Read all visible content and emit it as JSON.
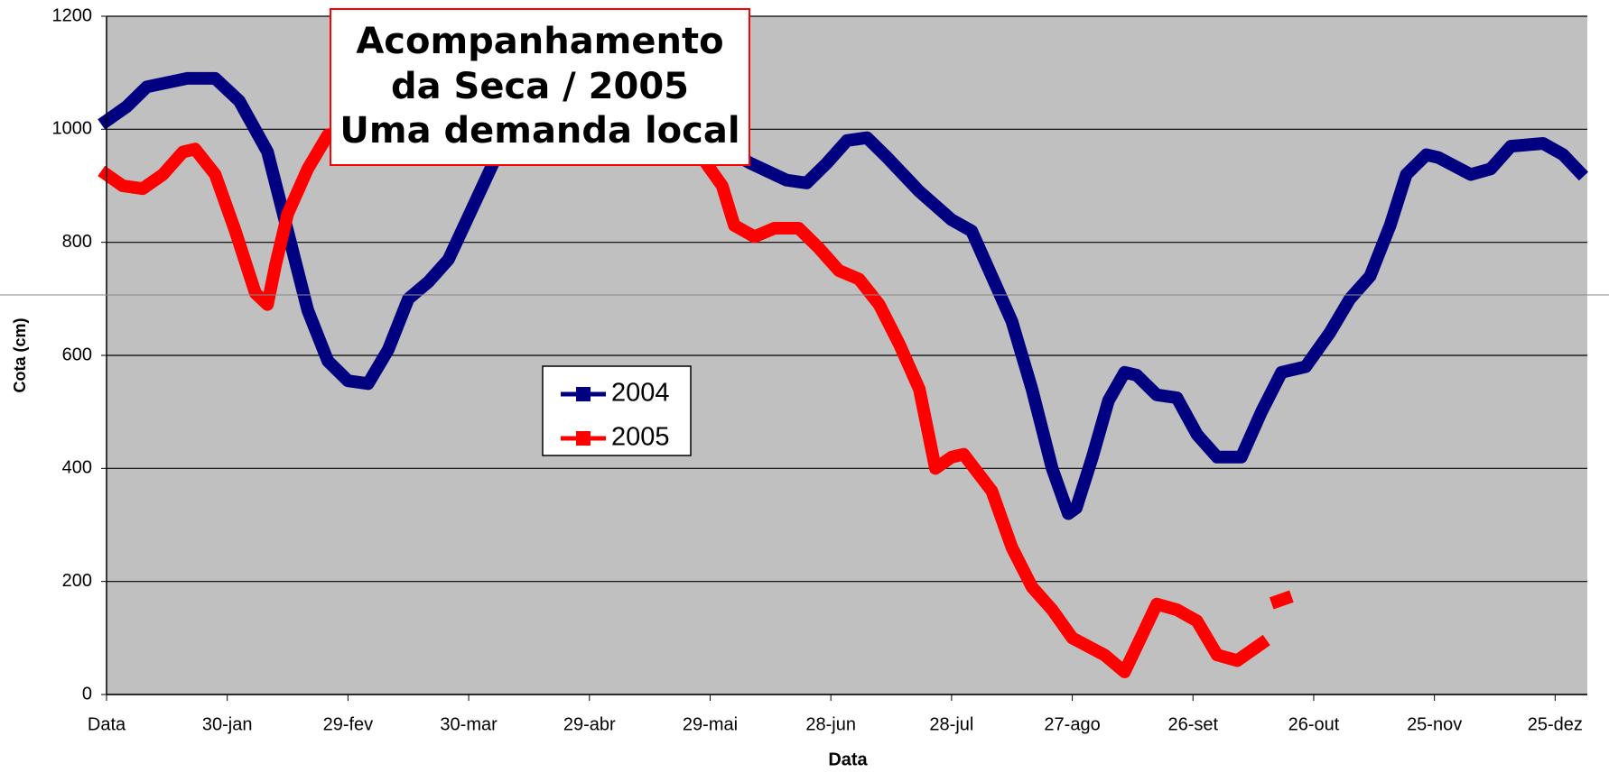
{
  "chart_data": {
    "type": "line",
    "title": [
      "Acompanhamento",
      "da Seca / 2005",
      "Uma demanda local"
    ],
    "x_label": "Data",
    "y_label": "Cota (cm)",
    "xlim": [
      0,
      368
    ],
    "ylim": [
      0,
      1200
    ],
    "xticks": [
      {
        "value": 0,
        "label": "Data"
      },
      {
        "value": 30,
        "label": "30-jan"
      },
      {
        "value": 60,
        "label": "29-fev"
      },
      {
        "value": 90,
        "label": "30-mar"
      },
      {
        "value": 120,
        "label": "29-abr"
      },
      {
        "value": 150,
        "label": "29-mai"
      },
      {
        "value": 180,
        "label": "28-jun"
      },
      {
        "value": 210,
        "label": "28-jul"
      },
      {
        "value": 240,
        "label": "27-ago"
      },
      {
        "value": 270,
        "label": "26-set"
      },
      {
        "value": 300,
        "label": "26-out"
      },
      {
        "value": 330,
        "label": "25-nov"
      },
      {
        "value": 360,
        "label": "25-dez"
      }
    ],
    "yticks": [
      0,
      200,
      400,
      600,
      800,
      1000,
      1200
    ],
    "grid": true,
    "legend": "center",
    "series": [
      {
        "name": "2004",
        "color": "#000080",
        "x": [
          0,
          5,
          10,
          20,
          27,
          33,
          40,
          45,
          50,
          55,
          60,
          65,
          70,
          75,
          80,
          85,
          100,
          120,
          140,
          155,
          160,
          169,
          174,
          179,
          184,
          189,
          194,
          202,
          210,
          215,
          220,
          225,
          230,
          235,
          239,
          241,
          245,
          249,
          253,
          256,
          261,
          266,
          271,
          276,
          282,
          287,
          292,
          298,
          304,
          309,
          314,
          319,
          323,
          328,
          331,
          339,
          344,
          349,
          357,
          362,
          366
        ],
        "values": [
          1015,
          1040,
          1075,
          1090,
          1090,
          1050,
          960,
          820,
          680,
          590,
          555,
          550,
          610,
          700,
          730,
          770,
          1000,
          1000,
          1000,
          960,
          940,
          910,
          905,
          940,
          980,
          985,
          950,
          890,
          840,
          820,
          740,
          660,
          540,
          400,
          320,
          330,
          420,
          520,
          570,
          565,
          530,
          525,
          460,
          420,
          420,
          500,
          570,
          580,
          640,
          700,
          740,
          830,
          920,
          955,
          950,
          920,
          930,
          970,
          975,
          955,
          925
        ]
      },
      {
        "name": "2005",
        "color": "#ff0000",
        "x": [
          0,
          4,
          9,
          14,
          19,
          22,
          27,
          32,
          37,
          40,
          42,
          45,
          50,
          55,
          70,
          100,
          130,
          148,
          153,
          156,
          161,
          166,
          172,
          177,
          182,
          187,
          192,
          197,
          202,
          206,
          210,
          213,
          220,
          225,
          230,
          235,
          240,
          248,
          253,
          257,
          261,
          266,
          271,
          276,
          281,
          287,
          289,
          291,
          293
        ],
        "values": [
          920,
          900,
          895,
          920,
          960,
          965,
          920,
          820,
          710,
          690,
          760,
          850,
          930,
          990,
          1010,
          1010,
          1000,
          950,
          900,
          830,
          810,
          825,
          825,
          790,
          750,
          735,
          690,
          620,
          540,
          400,
          420,
          425,
          360,
          260,
          190,
          150,
          100,
          70,
          40,
          100,
          160,
          150,
          130,
          70,
          60,
          90,
          null,
          165,
          170
        ]
      }
    ]
  }
}
